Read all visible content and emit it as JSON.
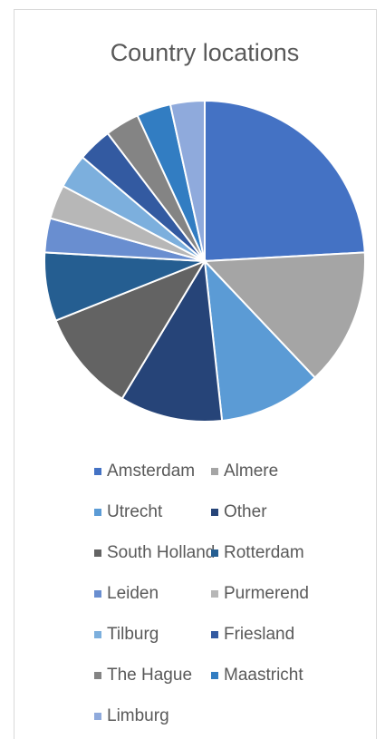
{
  "chart_data": {
    "type": "pie",
    "title": "Country locations",
    "categories": [
      "Amsterdam",
      "Almere",
      "Utrecht",
      "Other",
      "South Holland",
      "Rotterdam",
      "Leiden",
      "Purmerend",
      "Tilburg",
      "Friesland",
      "The Hague",
      "Maastricht",
      "Limburg"
    ],
    "values": [
      7,
      4,
      3,
      3,
      3,
      2,
      1,
      1,
      1,
      1,
      1,
      1,
      1
    ],
    "colors": [
      "#4472c4",
      "#a5a5a5",
      "#5b9bd5",
      "#264478",
      "#636363",
      "#255e91",
      "#698ed0",
      "#b7b7b7",
      "#7cafdd",
      "#335aa1",
      "#848484",
      "#327dc2",
      "#8faadc"
    ],
    "legend": "bottom"
  }
}
